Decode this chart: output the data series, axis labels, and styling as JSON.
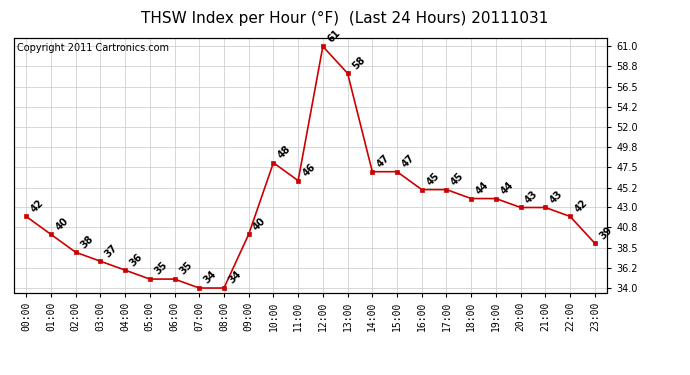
{
  "title": "THSW Index per Hour (°F)  (Last 24 Hours) 20111031",
  "copyright_text": "Copyright 2011 Cartronics.com",
  "hours": [
    0,
    1,
    2,
    3,
    4,
    5,
    6,
    7,
    8,
    9,
    10,
    11,
    12,
    13,
    14,
    15,
    16,
    17,
    18,
    19,
    20,
    21,
    22,
    23
  ],
  "values": [
    42,
    40,
    38,
    37,
    36,
    35,
    35,
    34,
    34,
    40,
    48,
    46,
    61,
    58,
    47,
    47,
    45,
    45,
    44,
    44,
    43,
    43,
    42,
    39
  ],
  "x_labels": [
    "00:00",
    "01:00",
    "02:00",
    "03:00",
    "04:00",
    "05:00",
    "06:00",
    "07:00",
    "08:00",
    "09:00",
    "10:00",
    "11:00",
    "12:00",
    "13:00",
    "14:00",
    "15:00",
    "16:00",
    "17:00",
    "18:00",
    "19:00",
    "20:00",
    "21:00",
    "22:00",
    "23:00"
  ],
  "y_ticks": [
    34.0,
    36.2,
    38.5,
    40.8,
    43.0,
    45.2,
    47.5,
    49.8,
    52.0,
    54.2,
    56.5,
    58.8,
    61.0
  ],
  "ylim": [
    33.5,
    62.0
  ],
  "line_color": "#cc0000",
  "marker_color": "#cc0000",
  "bg_color": "#ffffff",
  "grid_color": "#c8c8c8",
  "title_fontsize": 11,
  "copyright_fontsize": 7,
  "label_fontsize": 7,
  "tick_fontsize": 7
}
